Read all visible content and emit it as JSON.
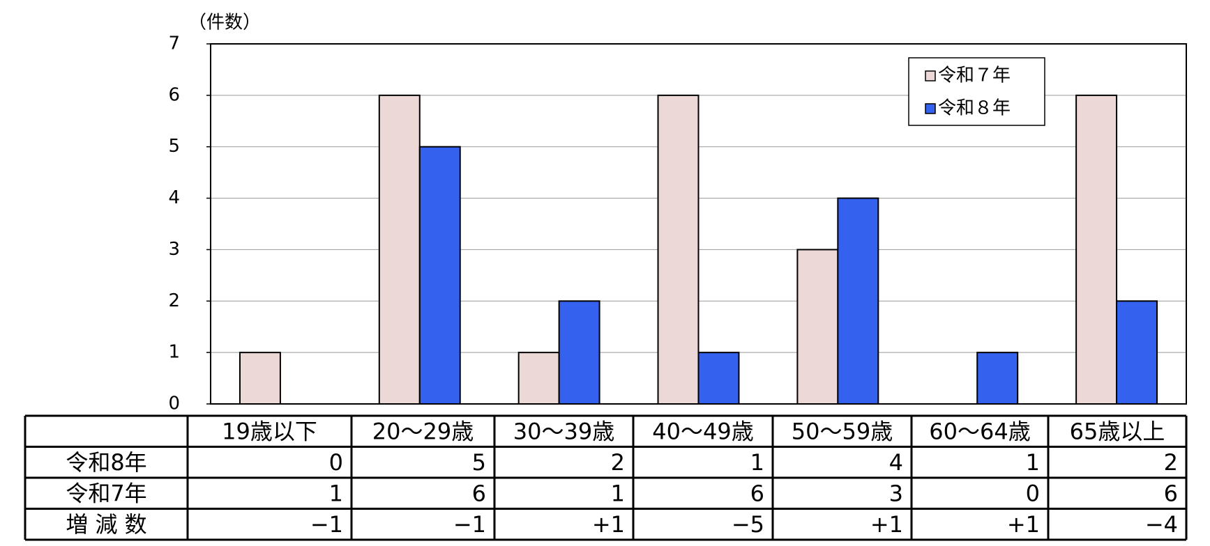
{
  "chart_data": {
    "type": "bar",
    "y_unit_label": "（件数）",
    "categories": [
      "19歳以下",
      "20～29歳",
      "30～39歳",
      "40～49歳",
      "50～59歳",
      "60～64歳",
      "65歳以上"
    ],
    "series": [
      {
        "name": "令和７年",
        "color": "#ecd8d6",
        "values": [
          1,
          6,
          1,
          6,
          3,
          0,
          6
        ]
      },
      {
        "name": "令和８年",
        "color": "#3462ee",
        "values": [
          0,
          5,
          2,
          1,
          4,
          1,
          2
        ]
      }
    ],
    "ylim": [
      0,
      7
    ],
    "yticks": [
      0,
      1,
      2,
      3,
      4,
      5,
      6,
      7
    ],
    "grid": true,
    "legend": "top-right"
  },
  "table": {
    "row_labels": [
      "令和8年",
      "令和7年",
      "増 減 数"
    ],
    "diff": [
      "−1",
      "−1",
      "+1",
      "−5",
      "+1",
      "+1",
      "−4"
    ]
  }
}
